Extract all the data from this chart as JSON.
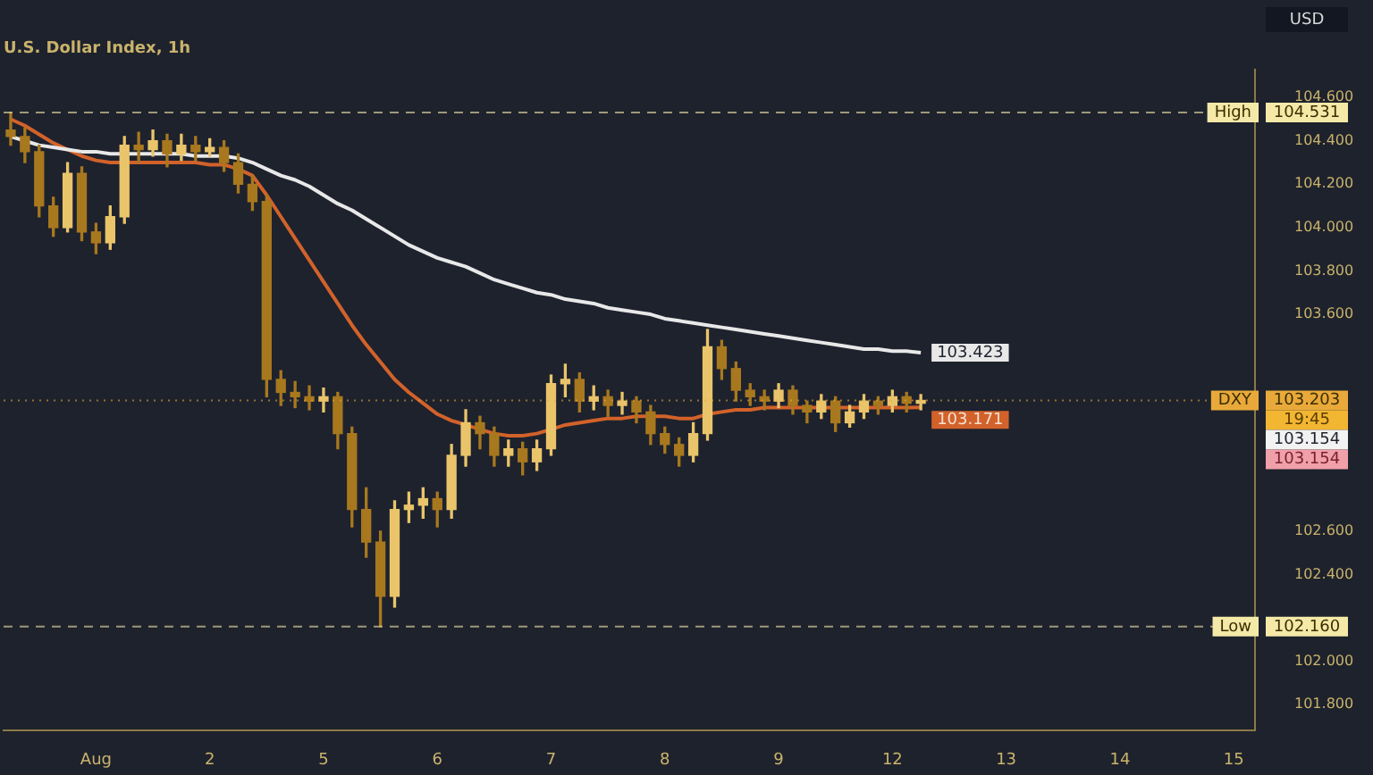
{
  "chart_data": {
    "type": "candlestick",
    "title": "U.S. Dollar Index, 1h",
    "ylabel": "USD",
    "colors": [
      "#a8781e",
      "#a8781e",
      "#a8781e",
      "#a8781e",
      "#e9c46a",
      "#a8781e",
      "#a8781e",
      "#e9c46a",
      "#e9c46a",
      "#a8781e",
      "#e9c46a",
      "#a8781e",
      "#e9c46a",
      "#a8781e",
      "#e9c46a",
      "#a8781e",
      "#a8781e",
      "#a8781e",
      "#a8781e",
      "#a8781e",
      "#a8781e",
      "#a8781e",
      "#e9c46a",
      "#a8781e",
      "#a8781e",
      "#a8781e",
      "#a8781e",
      "#e9c46a",
      "#e9c46a",
      "#e9c46a",
      "#a8781e",
      "#e9c46a",
      "#e9c46a",
      "#a8781e",
      "#a8781e",
      "#e9c46a",
      "#a8781e",
      "#e9c46a",
      "#e9c46a",
      "#e9c46a",
      "#a8781e",
      "#e9c46a",
      "#a8781e",
      "#e9c46a",
      "#a8781e",
      "#a8781e",
      "#a8781e",
      "#a8781e",
      "#e9c46a",
      "#e9c46a",
      "#a8781e",
      "#a8781e",
      "#a8781e",
      "#a8781e",
      "#e9c46a",
      "#a8781e",
      "#a8781e",
      "#e9c46a",
      "#a8781e",
      "#e9c46a",
      "#e9c46a",
      "#a8781e",
      "#e9c46a",
      "#a8781e",
      "#e9c46a",
      null,
      null,
      null,
      null,
      null,
      null,
      null,
      null,
      null,
      null,
      null,
      null,
      null,
      null,
      null,
      null,
      null,
      null,
      null,
      null,
      null,
      null,
      null
    ],
    "categories": [
      null,
      null,
      null,
      null,
      null,
      null,
      "Aug",
      null,
      null,
      null,
      null,
      null,
      null,
      null,
      "2",
      null,
      null,
      null,
      null,
      null,
      null,
      null,
      "5",
      null,
      null,
      null,
      null,
      null,
      null,
      null,
      "6",
      null,
      null,
      null,
      null,
      null,
      null,
      null,
      "7",
      null,
      null,
      null,
      null,
      null,
      null,
      null,
      "8",
      null,
      null,
      null,
      null,
      null,
      null,
      null,
      "9",
      null,
      null,
      null,
      null,
      null,
      null,
      null,
      "12",
      null,
      null,
      null,
      null,
      null,
      null,
      null,
      "13",
      null,
      null,
      null,
      null,
      null,
      null,
      null,
      "14",
      null,
      null,
      null,
      null,
      null,
      null,
      null,
      "15",
      null
    ],
    "ohlc": [
      [
        104.45,
        104.531,
        104.38,
        104.42
      ],
      [
        104.42,
        104.46,
        104.3,
        104.35
      ],
      [
        104.35,
        104.38,
        104.05,
        104.1
      ],
      [
        104.1,
        104.14,
        103.96,
        104.0
      ],
      [
        104.0,
        104.3,
        103.98,
        104.25
      ],
      [
        104.25,
        104.28,
        103.94,
        103.98
      ],
      [
        103.98,
        104.02,
        103.88,
        103.93
      ],
      [
        103.93,
        104.1,
        103.9,
        104.05
      ],
      [
        104.05,
        104.42,
        104.02,
        104.38
      ],
      [
        104.38,
        104.44,
        104.3,
        104.36
      ],
      [
        104.36,
        104.45,
        104.33,
        104.4
      ],
      [
        104.4,
        104.43,
        104.28,
        104.34
      ],
      [
        104.34,
        104.43,
        104.31,
        104.38
      ],
      [
        104.38,
        104.42,
        104.31,
        104.35
      ],
      [
        104.35,
        104.41,
        104.33,
        104.37
      ],
      [
        104.37,
        104.4,
        104.26,
        104.3
      ],
      [
        104.3,
        104.34,
        104.16,
        104.2
      ],
      [
        104.2,
        104.24,
        104.08,
        104.12
      ],
      [
        104.12,
        104.15,
        103.22,
        103.3
      ],
      [
        103.3,
        103.34,
        103.18,
        103.24
      ],
      [
        103.24,
        103.29,
        103.17,
        103.22
      ],
      [
        103.22,
        103.27,
        103.16,
        103.2
      ],
      [
        103.2,
        103.26,
        103.15,
        103.22
      ],
      [
        103.22,
        103.24,
        102.98,
        103.05
      ],
      [
        103.05,
        103.08,
        102.62,
        102.7
      ],
      [
        102.7,
        102.8,
        102.48,
        102.55
      ],
      [
        102.55,
        102.6,
        102.16,
        102.3
      ],
      [
        102.3,
        102.74,
        102.25,
        102.7
      ],
      [
        102.7,
        102.78,
        102.64,
        102.72
      ],
      [
        102.72,
        102.8,
        102.66,
        102.75
      ],
      [
        102.75,
        102.78,
        102.62,
        102.7
      ],
      [
        102.7,
        103.0,
        102.66,
        102.95
      ],
      [
        102.95,
        103.16,
        102.9,
        103.1
      ],
      [
        103.1,
        103.13,
        102.98,
        103.05
      ],
      [
        103.05,
        103.08,
        102.9,
        102.95
      ],
      [
        102.95,
        103.02,
        102.9,
        102.98
      ],
      [
        102.98,
        103.01,
        102.86,
        102.92
      ],
      [
        102.92,
        103.02,
        102.88,
        102.98
      ],
      [
        102.98,
        103.32,
        102.95,
        103.28
      ],
      [
        103.28,
        103.37,
        103.22,
        103.3
      ],
      [
        103.3,
        103.33,
        103.15,
        103.2
      ],
      [
        103.2,
        103.27,
        103.16,
        103.22
      ],
      [
        103.22,
        103.25,
        103.13,
        103.18
      ],
      [
        103.18,
        103.24,
        103.14,
        103.2
      ],
      [
        103.2,
        103.22,
        103.1,
        103.15
      ],
      [
        103.15,
        103.18,
        103.0,
        103.05
      ],
      [
        103.05,
        103.08,
        102.96,
        103.0
      ],
      [
        103.0,
        103.03,
        102.9,
        102.95
      ],
      [
        102.95,
        103.1,
        102.92,
        103.05
      ],
      [
        103.05,
        103.53,
        103.02,
        103.45
      ],
      [
        103.45,
        103.48,
        103.3,
        103.35
      ],
      [
        103.35,
        103.38,
        103.2,
        103.25
      ],
      [
        103.25,
        103.28,
        103.18,
        103.22
      ],
      [
        103.22,
        103.25,
        103.16,
        103.2
      ],
      [
        103.2,
        103.28,
        103.17,
        103.25
      ],
      [
        103.25,
        103.27,
        103.14,
        103.18
      ],
      [
        103.18,
        103.2,
        103.1,
        103.15
      ],
      [
        103.15,
        103.23,
        103.12,
        103.2
      ],
      [
        103.2,
        103.22,
        103.06,
        103.1
      ],
      [
        103.1,
        103.18,
        103.08,
        103.15
      ],
      [
        103.15,
        103.23,
        103.12,
        103.2
      ],
      [
        103.2,
        103.22,
        103.14,
        103.18
      ],
      [
        103.18,
        103.25,
        103.15,
        103.22
      ],
      [
        103.22,
        103.24,
        103.15,
        103.19
      ],
      [
        103.19,
        103.23,
        103.16,
        103.203
      ],
      null,
      null,
      null,
      null,
      null,
      null,
      null,
      null,
      null,
      null,
      null,
      null,
      null,
      null,
      null,
      null,
      null,
      null,
      null,
      null,
      null,
      null,
      null
    ],
    "series": [
      {
        "type": "line",
        "color": "#e8e8e8",
        "values": [
          104.42,
          104.4,
          104.38,
          104.37,
          104.36,
          104.35,
          104.35,
          104.34,
          104.34,
          104.34,
          104.34,
          104.34,
          104.34,
          104.33,
          104.33,
          104.33,
          104.32,
          104.3,
          104.27,
          104.24,
          104.22,
          104.19,
          104.15,
          104.11,
          104.08,
          104.04,
          104.0,
          103.96,
          103.92,
          103.89,
          103.86,
          103.84,
          103.82,
          103.79,
          103.76,
          103.74,
          103.72,
          103.7,
          103.69,
          103.67,
          103.66,
          103.65,
          103.63,
          103.62,
          103.61,
          103.6,
          103.58,
          103.57,
          103.56,
          103.55,
          103.54,
          103.53,
          103.52,
          103.51,
          103.5,
          103.49,
          103.48,
          103.47,
          103.46,
          103.45,
          103.44,
          103.44,
          103.43,
          103.43,
          103.423,
          null,
          null,
          null,
          null,
          null,
          null,
          null,
          null,
          null,
          null,
          null,
          null,
          null,
          null,
          null,
          null,
          null,
          null,
          null,
          null,
          null,
          null,
          null
        ],
        "value_labels": [
          null,
          null,
          null,
          null,
          null,
          null,
          null,
          null,
          null,
          null,
          null,
          null,
          null,
          null,
          null,
          null,
          null,
          null,
          null,
          null,
          null,
          null,
          null,
          null,
          null,
          null,
          null,
          null,
          null,
          null,
          null,
          null,
          null,
          null,
          null,
          null,
          null,
          null,
          null,
          null,
          null,
          null,
          null,
          null,
          null,
          null,
          null,
          null,
          null,
          null,
          null,
          null,
          null,
          null,
          null,
          null,
          null,
          null,
          null,
          null,
          null,
          null,
          null,
          null,
          "103.423",
          null,
          null,
          null,
          null,
          null,
          null,
          null,
          null,
          null,
          null,
          null,
          null,
          null,
          null,
          null,
          null,
          null,
          null,
          null,
          null,
          null,
          null,
          null
        ]
      },
      {
        "type": "line",
        "color": "#d2622a",
        "values": [
          104.5,
          104.47,
          104.43,
          104.39,
          104.36,
          104.33,
          104.31,
          104.3,
          104.3,
          104.3,
          104.3,
          104.3,
          104.3,
          104.3,
          104.29,
          104.29,
          104.27,
          104.24,
          104.15,
          104.05,
          103.95,
          103.85,
          103.75,
          103.65,
          103.55,
          103.46,
          103.38,
          103.3,
          103.24,
          103.19,
          103.14,
          103.11,
          103.09,
          103.07,
          103.05,
          103.04,
          103.04,
          103.05,
          103.07,
          103.09,
          103.1,
          103.11,
          103.12,
          103.12,
          103.13,
          103.13,
          103.13,
          103.12,
          103.12,
          103.14,
          103.15,
          103.16,
          103.16,
          103.17,
          103.17,
          103.17,
          103.17,
          103.17,
          103.17,
          103.17,
          103.17,
          103.17,
          103.17,
          103.17,
          103.171,
          null,
          null,
          null,
          null,
          null,
          null,
          null,
          null,
          null,
          null,
          null,
          null,
          null,
          null,
          null,
          null,
          null,
          null,
          null,
          null,
          null,
          null,
          null
        ],
        "value_labels": [
          null,
          null,
          null,
          null,
          null,
          null,
          null,
          null,
          null,
          null,
          null,
          null,
          null,
          null,
          null,
          null,
          null,
          null,
          null,
          null,
          null,
          null,
          null,
          null,
          null,
          null,
          null,
          null,
          null,
          null,
          null,
          null,
          null,
          null,
          null,
          null,
          null,
          null,
          null,
          null,
          null,
          null,
          null,
          null,
          null,
          null,
          null,
          null,
          null,
          null,
          null,
          null,
          null,
          null,
          null,
          null,
          null,
          null,
          null,
          null,
          null,
          null,
          null,
          null,
          "103.171",
          null,
          null,
          null,
          null,
          null,
          null,
          null,
          null,
          null,
          null,
          null,
          null,
          null,
          null,
          null,
          null,
          null,
          null,
          null,
          null,
          null,
          null,
          null
        ]
      }
    ],
    "ylim": [
      101.68,
      104.73
    ],
    "yticks": [
      {
        "value": 104.6,
        "label": "104.600"
      },
      {
        "value": 104.4,
        "label": "104.400"
      },
      {
        "value": 104.2,
        "label": "104.200"
      },
      {
        "value": 104.0,
        "label": "104.000"
      },
      {
        "value": 103.8,
        "label": "103.800"
      },
      {
        "value": 103.6,
        "label": "103.600"
      },
      {
        "value": 102.6,
        "label": "102.600"
      },
      {
        "value": 102.4,
        "label": "102.400"
      },
      {
        "value": 102.0,
        "label": "102.000"
      },
      {
        "value": 101.8,
        "label": "101.800"
      }
    ],
    "ref_lines": [
      {
        "axis": "y",
        "value": 104.531,
        "label": "High",
        "color": "#f5e9a8",
        "line_style": "dashed"
      },
      {
        "axis": "y",
        "value": 103.203,
        "label": "DXY",
        "color": "#e9a93a",
        "line_style": "dotted"
      },
      {
        "axis": "y",
        "value": 102.16,
        "label": "Low",
        "color": "#f5e9a8",
        "line_style": "dashed"
      }
    ],
    "annotations": [
      "104.531",
      "103.203",
      "102.160",
      "19:45",
      "103.154",
      "103.154"
    ],
    "grid": false,
    "legend": false,
    "marker": "none",
    "line_style": "solid"
  }
}
